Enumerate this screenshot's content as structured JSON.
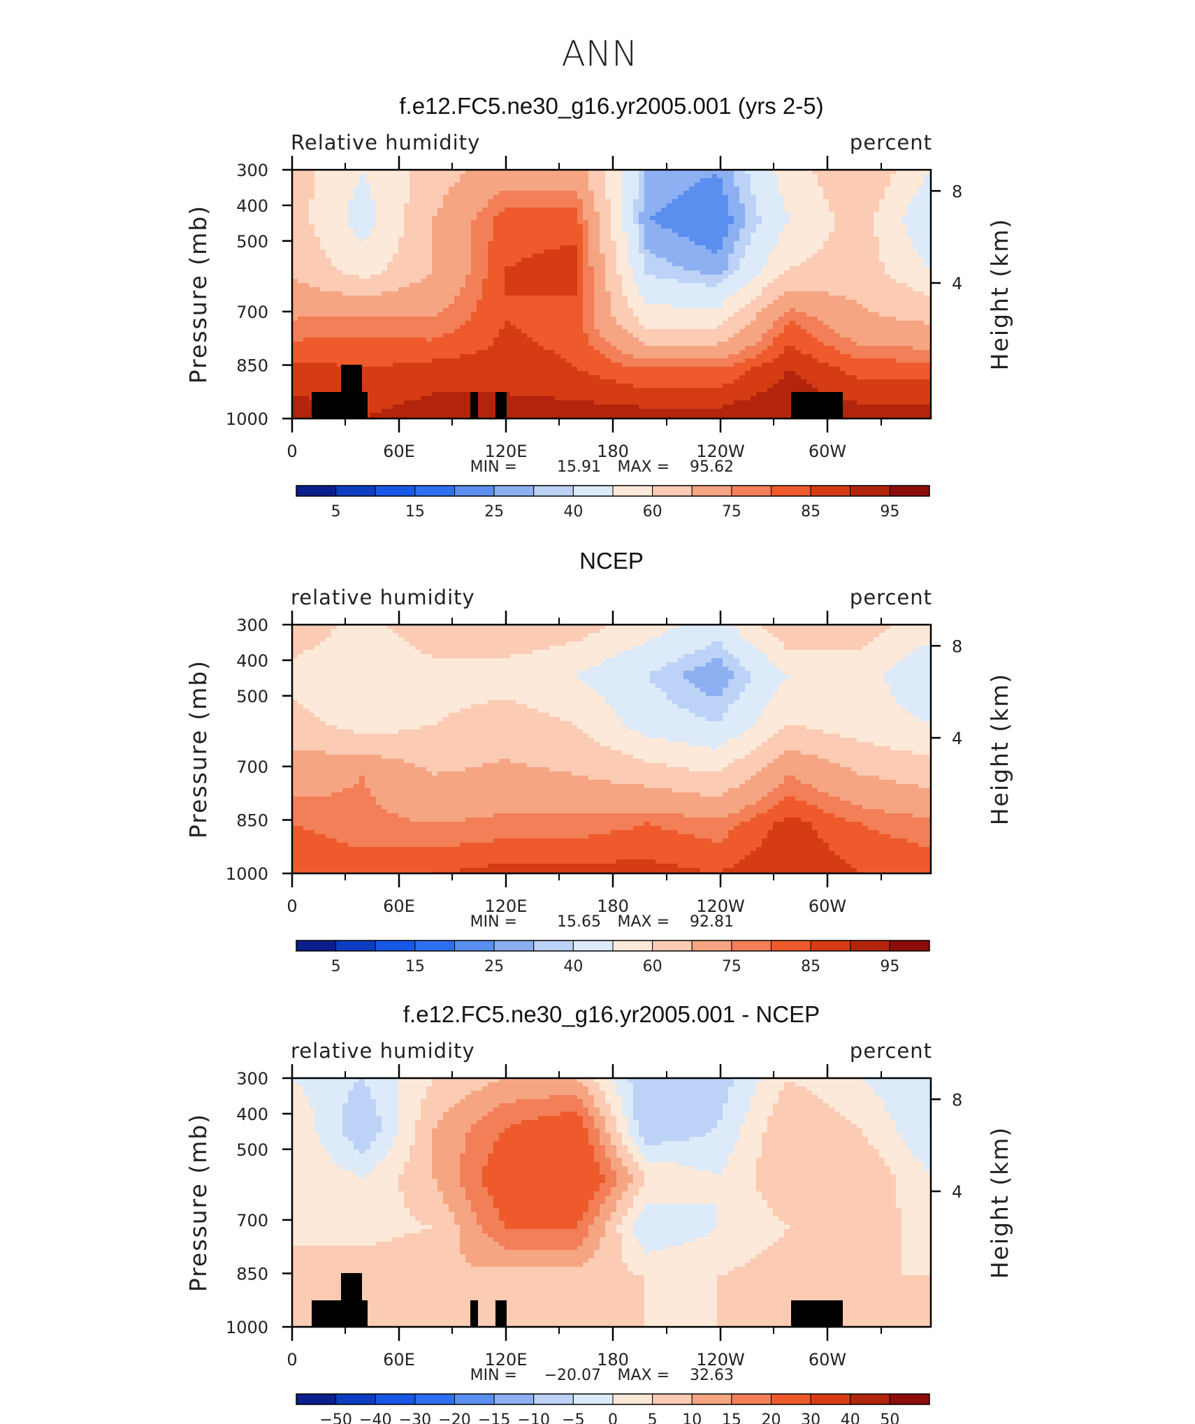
{
  "figure": {
    "title": "ANN"
  },
  "pressure_ticks": [
    "300",
    "400",
    "500",
    "700",
    "850",
    "1000"
  ],
  "height_ticks": [
    "8",
    "4"
  ],
  "lon_ticks": [
    "0",
    "60E",
    "120E",
    "180",
    "120W",
    "60W"
  ],
  "chart_data": [
    {
      "type": "heatmap",
      "title": "f.e12.FC5.ne30_g16.yr2005.001 (yrs 2-5)",
      "variable_label": "Relative humidity",
      "units_label": "percent",
      "ylabel": "Pressure (mb)",
      "y2label": "Height (km)",
      "stats": {
        "min_label": "MIN =",
        "min": "15.91",
        "max_label": "MAX =",
        "max": "95.62"
      },
      "colorbar": {
        "labels": [
          "5",
          "15",
          "25",
          "40",
          "60",
          "75",
          "85",
          "95"
        ],
        "colors": [
          "#0a1e8c",
          "#0d3ec2",
          "#1957e6",
          "#2e6ff2",
          "#5a8ff0",
          "#8cb0f2",
          "#bcd2f6",
          "#dceafa",
          "#fde9d9",
          "#fbcbb3",
          "#f6a583",
          "#f27f57",
          "#ee5a2b",
          "#d63c14",
          "#b2240c",
          "#8b0c08"
        ]
      },
      "x": [
        "0",
        "60E",
        "120E",
        "180",
        "120W",
        "60W"
      ],
      "y": [
        "300",
        "400",
        "500",
        "700",
        "850",
        "1000"
      ],
      "z": [
        [
          55,
          40,
          55,
          65,
          65,
          25,
          20,
          45,
          60,
          40
        ],
        [
          55,
          35,
          60,
          78,
          78,
          20,
          15,
          40,
          55,
          30
        ],
        [
          58,
          45,
          60,
          80,
          82,
          28,
          22,
          50,
          55,
          40
        ],
        [
          70,
          72,
          70,
          80,
          78,
          45,
          45,
          75,
          62,
          58
        ],
        [
          82,
          80,
          82,
          82,
          80,
          75,
          75,
          85,
          78,
          78
        ],
        [
          88,
          85,
          88,
          88,
          88,
          88,
          88,
          90,
          88,
          88
        ]
      ]
    },
    {
      "type": "heatmap",
      "title": "NCEP",
      "variable_label": "relative humidity",
      "units_label": "percent",
      "ylabel": "Pressure (mb)",
      "y2label": "Height (km)",
      "stats": {
        "min_label": "MIN =",
        "min": "15.65",
        "max_label": "MAX =",
        "max": "92.81"
      },
      "colorbar": {
        "labels": [
          "5",
          "15",
          "25",
          "40",
          "60",
          "75",
          "85",
          "95"
        ],
        "colors": [
          "#0a1e8c",
          "#0d3ec2",
          "#1957e6",
          "#2e6ff2",
          "#5a8ff0",
          "#8cb0f2",
          "#bcd2f6",
          "#dceafa",
          "#fde9d9",
          "#fbcbb3",
          "#f6a583",
          "#f27f57",
          "#ee5a2b",
          "#d63c14",
          "#b2240c",
          "#8b0c08"
        ]
      },
      "x": [
        "0",
        "60E",
        "120E",
        "180",
        "120W",
        "60W"
      ],
      "y": [
        "300",
        "400",
        "500",
        "700",
        "850",
        "1000"
      ],
      "z": [
        [
          60,
          45,
          60,
          60,
          55,
          45,
          35,
          60,
          55,
          45
        ],
        [
          45,
          40,
          45,
          45,
          40,
          30,
          20,
          40,
          45,
          30
        ],
        [
          55,
          45,
          50,
          55,
          50,
          35,
          30,
          50,
          45,
          40
        ],
        [
          65,
          70,
          60,
          62,
          60,
          55,
          50,
          70,
          60,
          55
        ],
        [
          75,
          72,
          70,
          72,
          72,
          75,
          72,
          82,
          75,
          72
        ],
        [
          80,
          78,
          80,
          82,
          82,
          82,
          80,
          85,
          80,
          78
        ]
      ]
    },
    {
      "type": "heatmap",
      "title": "f.e12.FC5.ne30_g16.yr2005.001 - NCEP",
      "variable_label": "relative humidity",
      "units_label": "percent",
      "ylabel": "Pressure (mb)",
      "y2label": "Height (km)",
      "stats": {
        "min_label": "MIN =",
        "min": "−20.07",
        "max_label": "MAX =",
        "max": "32.63"
      },
      "colorbar": {
        "labels": [
          "−50",
          "−40",
          "−30",
          "−20",
          "−15",
          "−10",
          "−5",
          "0",
          "5",
          "10",
          "15",
          "20",
          "30",
          "40",
          "50"
        ],
        "colors": [
          "#0a1e8c",
          "#0d3ec2",
          "#1957e6",
          "#2e6ff2",
          "#5a8ff0",
          "#8cb0f2",
          "#bcd2f6",
          "#dceafa",
          "#fde9d9",
          "#fbcbb3",
          "#f6a583",
          "#f27f57",
          "#ee5a2b",
          "#d63c14",
          "#b2240c",
          "#8b0c08"
        ]
      },
      "x": [
        "0",
        "60E",
        "120E",
        "180",
        "120W",
        "60W"
      ],
      "y": [
        "300",
        "400",
        "500",
        "700",
        "850",
        "1000"
      ],
      "z": [
        [
          0,
          -5,
          5,
          10,
          10,
          -10,
          -8,
          5,
          0,
          -5
        ],
        [
          5,
          -10,
          10,
          20,
          25,
          -10,
          -5,
          10,
          5,
          -5
        ],
        [
          5,
          0,
          10,
          25,
          30,
          5,
          0,
          10,
          10,
          0
        ],
        [
          3,
          3,
          5,
          20,
          20,
          -5,
          0,
          5,
          8,
          3
        ],
        [
          8,
          8,
          10,
          8,
          8,
          5,
          5,
          8,
          5,
          5
        ],
        [
          8,
          6,
          8,
          6,
          6,
          5,
          5,
          8,
          8,
          10
        ]
      ]
    }
  ]
}
